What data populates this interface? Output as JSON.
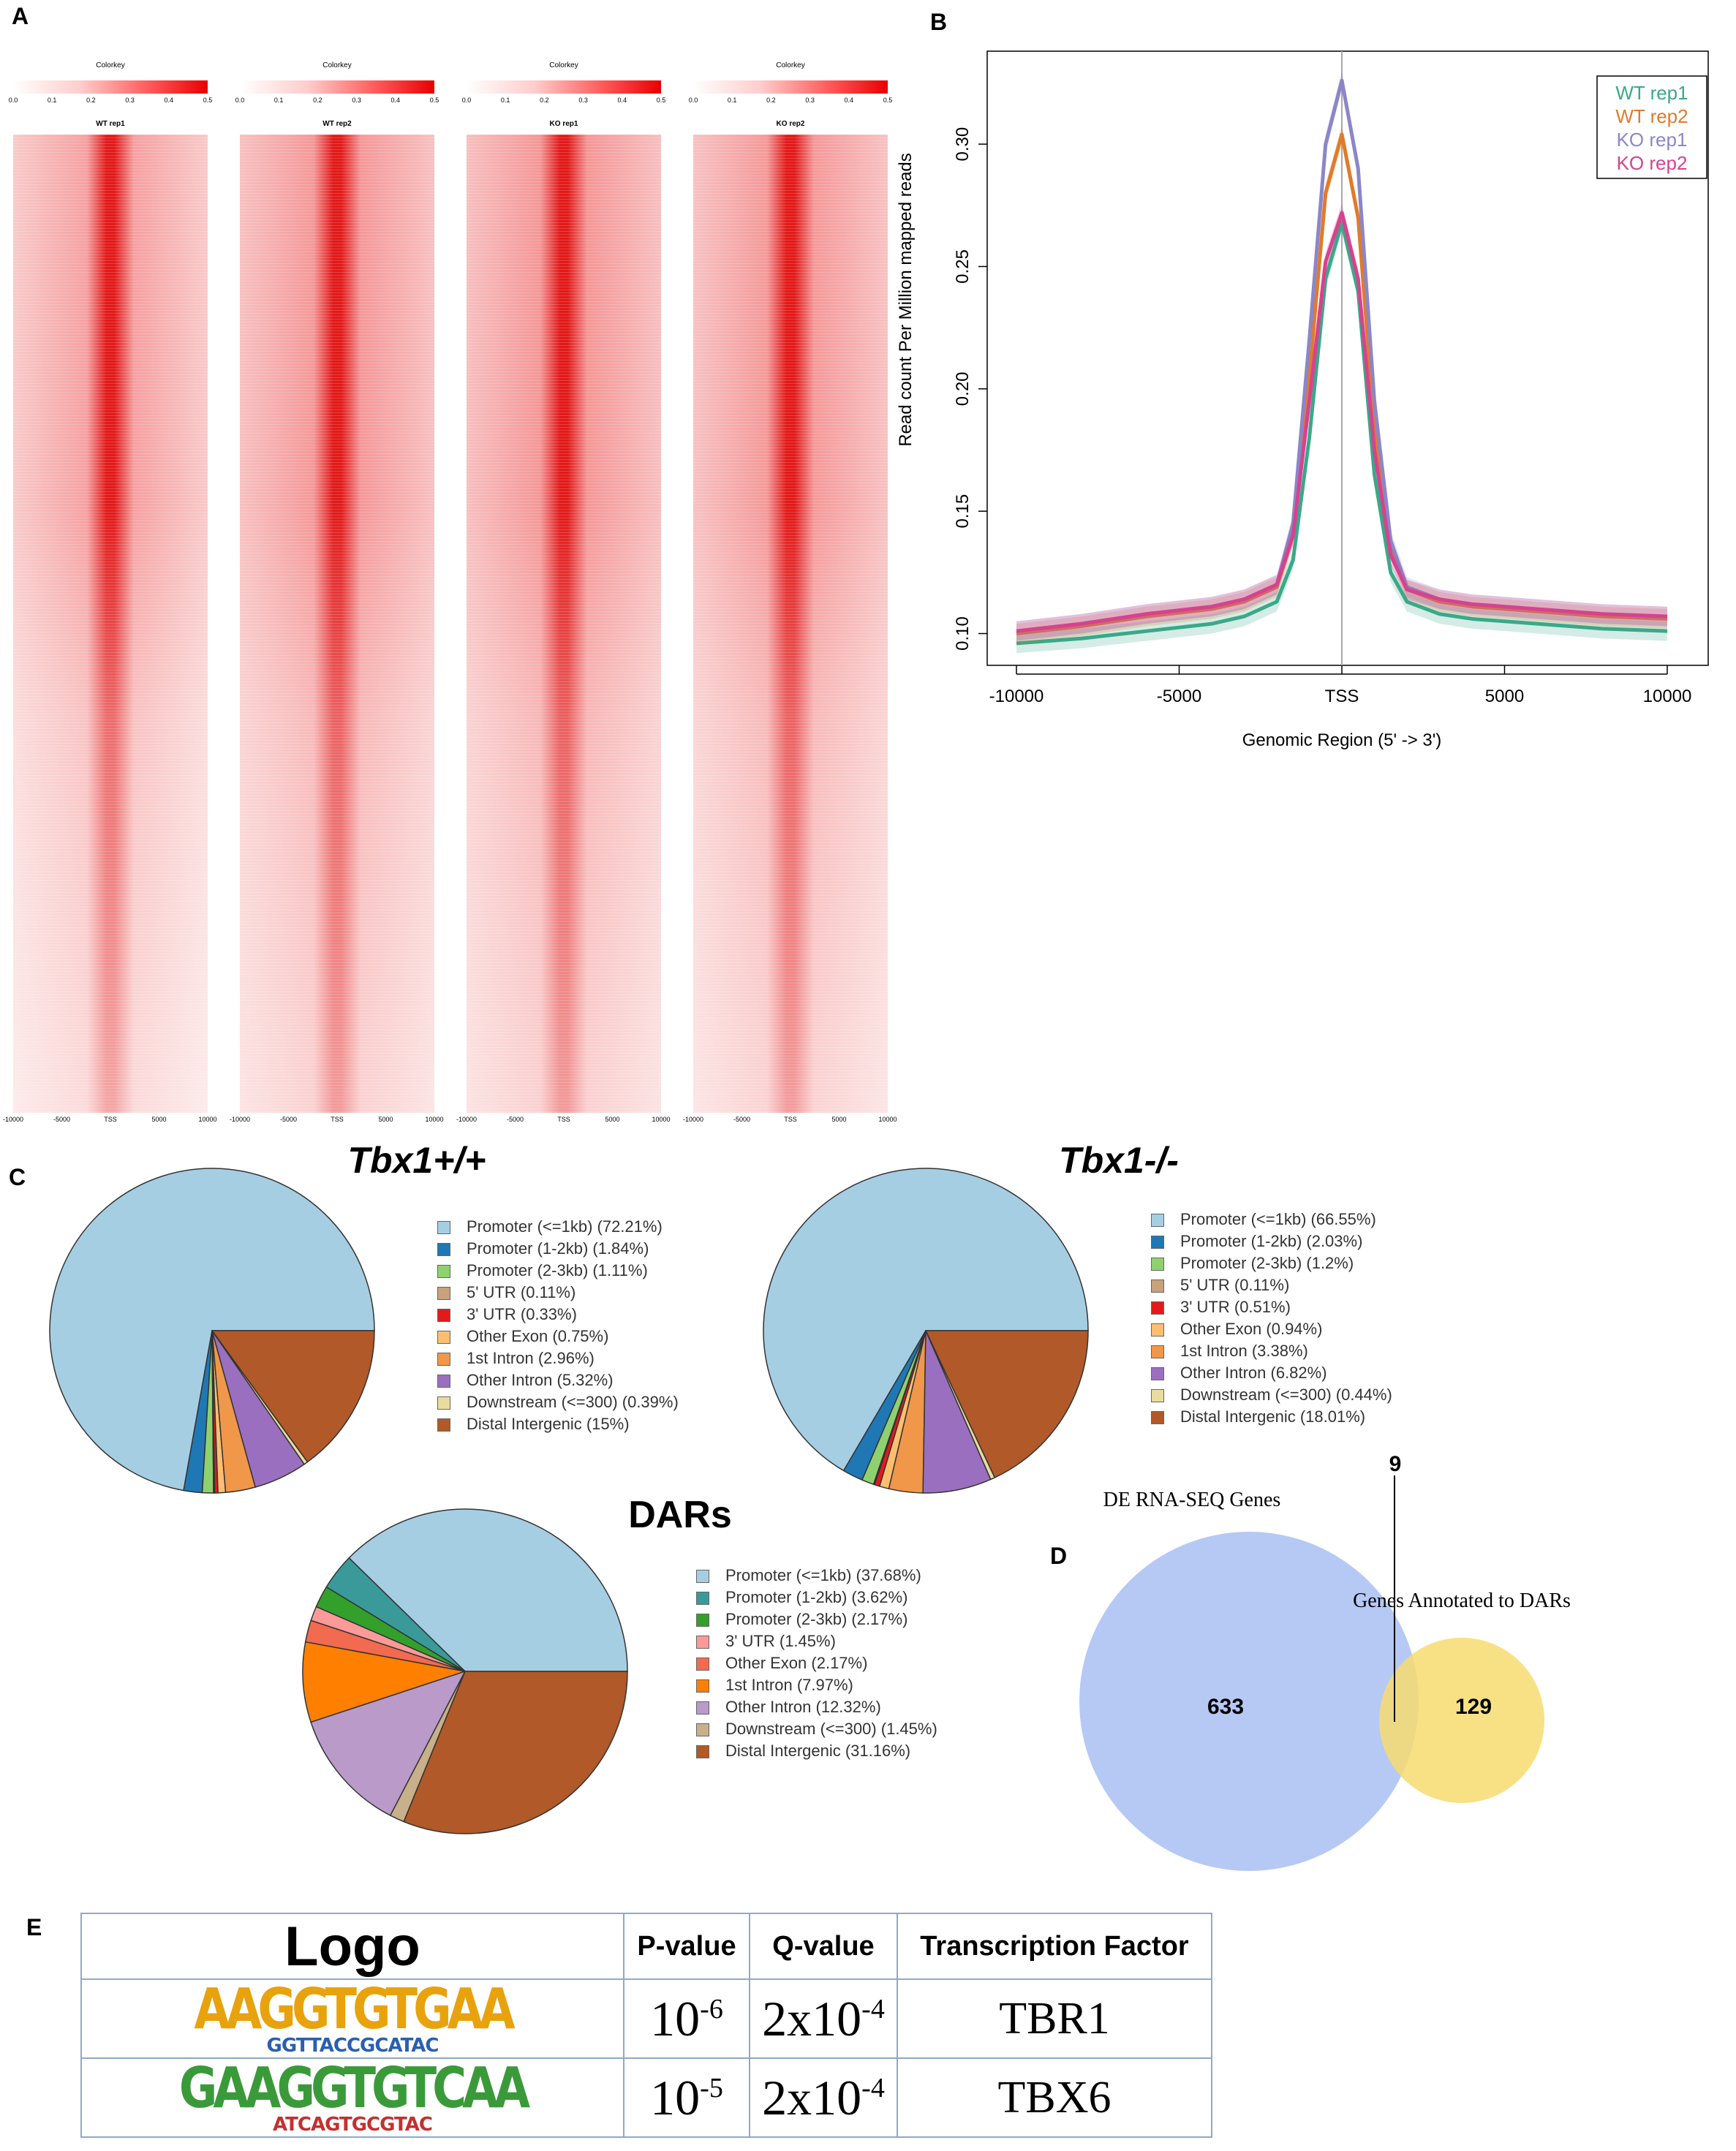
{
  "panels": {
    "a": "A",
    "b": "B",
    "c": "C",
    "d": "D",
    "e": "E"
  },
  "heatmaps": {
    "colorkey_title": "Colorkey",
    "x_ticks": [
      "-10000",
      "-5000",
      "TSS",
      "5000",
      "10000"
    ],
    "samples": [
      {
        "name": "WT rep1",
        "colorkey_ticks": [
          "0.0",
          "0.1",
          "0.2",
          "0.3",
          "0.4",
          "0.5"
        ],
        "intensity": 0.45
      },
      {
        "name": "WT rep2",
        "colorkey_ticks": [
          "0.0",
          "0.1",
          "0.2",
          "0.3",
          "0.4",
          "0.5"
        ],
        "intensity": 0.6
      },
      {
        "name": "KO rep1",
        "colorkey_ticks": [
          "0.0",
          "0.1",
          "0.2",
          "0.3",
          "0.4",
          "0.5"
        ],
        "intensity": 0.62
      },
      {
        "name": "KO rep2",
        "colorkey_ticks": [
          "0.0",
          "0.1",
          "0.2",
          "0.3",
          "0.4",
          "0.5"
        ],
        "intensity": 0.58
      }
    ]
  },
  "chart_data": [
    {
      "type": "line",
      "id": "profile",
      "title": "",
      "xlabel": "Genomic Region (5' -> 3')",
      "ylabel": "Read count Per Million mapped reads",
      "xlim": [
        -10000,
        10000
      ],
      "ylim": [
        0.09,
        0.335
      ],
      "x_ticks": [
        -10000,
        -5000,
        0,
        5000,
        10000
      ],
      "x_tick_labels": [
        "-10000",
        "-5000",
        "TSS",
        "5000",
        "10000"
      ],
      "y_ticks": [
        0.1,
        0.15,
        0.2,
        0.25,
        0.3
      ],
      "y_tick_labels": [
        "0.10",
        "0.15",
        "0.20",
        "0.25",
        "0.30"
      ],
      "legend_position": "top-right",
      "x": [
        -10000,
        -8000,
        -6000,
        -4000,
        -3000,
        -2000,
        -1500,
        -1000,
        -500,
        0,
        500,
        1000,
        1500,
        2000,
        3000,
        4000,
        6000,
        8000,
        10000
      ],
      "series": [
        {
          "name": "WT rep1",
          "color": "#3aa889",
          "values": [
            0.096,
            0.098,
            0.101,
            0.104,
            0.107,
            0.113,
            0.13,
            0.18,
            0.245,
            0.268,
            0.24,
            0.165,
            0.125,
            0.113,
            0.108,
            0.106,
            0.104,
            0.102,
            0.101
          ]
        },
        {
          "name": "WT rep2",
          "color": "#e07b2a",
          "values": [
            0.1,
            0.103,
            0.107,
            0.11,
            0.113,
            0.119,
            0.14,
            0.205,
            0.28,
            0.304,
            0.27,
            0.185,
            0.135,
            0.118,
            0.113,
            0.111,
            0.109,
            0.107,
            0.106
          ]
        },
        {
          "name": "KO rep1",
          "color": "#8b86c8",
          "values": [
            0.101,
            0.104,
            0.108,
            0.111,
            0.114,
            0.12,
            0.145,
            0.22,
            0.3,
            0.326,
            0.29,
            0.195,
            0.138,
            0.119,
            0.114,
            0.112,
            0.11,
            0.108,
            0.107
          ]
        },
        {
          "name": "KO rep2",
          "color": "#d6428f",
          "values": [
            0.101,
            0.104,
            0.108,
            0.111,
            0.114,
            0.12,
            0.14,
            0.195,
            0.252,
            0.272,
            0.245,
            0.175,
            0.132,
            0.118,
            0.114,
            0.112,
            0.11,
            0.108,
            0.107
          ]
        }
      ]
    },
    {
      "type": "pie",
      "id": "wt",
      "title": "Tbx1+/+",
      "slices": [
        {
          "label": "Promoter (<=1kb) (72.21%)",
          "value": 72.21,
          "color": "#a6cee3"
        },
        {
          "label": "Promoter (1-2kb) (1.84%)",
          "value": 1.84,
          "color": "#1f78b4"
        },
        {
          "label": "Promoter (2-3kb) (1.11%)",
          "value": 1.11,
          "color": "#8fd16f"
        },
        {
          "label": "5' UTR (0.11%)",
          "value": 0.11,
          "color": "#c7a27c"
        },
        {
          "label": "3' UTR (0.33%)",
          "value": 0.33,
          "color": "#e31a1c"
        },
        {
          "label": "Other Exon (0.75%)",
          "value": 0.75,
          "color": "#fdbf6f"
        },
        {
          "label": "1st Intron (2.96%)",
          "value": 2.96,
          "color": "#f0974a"
        },
        {
          "label": "Other Intron (5.32%)",
          "value": 5.32,
          "color": "#9b6fc0"
        },
        {
          "label": "Downstream (<=300) (0.39%)",
          "value": 0.39,
          "color": "#e8dca0"
        },
        {
          "label": "Distal Intergenic (15%)",
          "value": 15,
          "color": "#b15928"
        }
      ]
    },
    {
      "type": "pie",
      "id": "ko",
      "title": "Tbx1-/-",
      "slices": [
        {
          "label": "Promoter (<=1kb) (66.55%)",
          "value": 66.55,
          "color": "#a6cee3"
        },
        {
          "label": "Promoter (1-2kb) (2.03%)",
          "value": 2.03,
          "color": "#1f78b4"
        },
        {
          "label": "Promoter (2-3kb) (1.2%)",
          "value": 1.2,
          "color": "#8fd16f"
        },
        {
          "label": "5' UTR (0.11%)",
          "value": 0.11,
          "color": "#c7a27c"
        },
        {
          "label": "3' UTR (0.51%)",
          "value": 0.51,
          "color": "#e31a1c"
        },
        {
          "label": "Other Exon (0.94%)",
          "value": 0.94,
          "color": "#fdbf6f"
        },
        {
          "label": "1st Intron (3.38%)",
          "value": 3.38,
          "color": "#f0974a"
        },
        {
          "label": "Other Intron (6.82%)",
          "value": 6.82,
          "color": "#9b6fc0"
        },
        {
          "label": "Downstream (<=300) (0.44%)",
          "value": 0.44,
          "color": "#e8dca0"
        },
        {
          "label": "Distal Intergenic (18.01%)",
          "value": 18.01,
          "color": "#b15928"
        }
      ]
    },
    {
      "type": "pie",
      "id": "dars",
      "title": "DARs",
      "slices": [
        {
          "label": "Promoter (<=1kb) (37.68%)",
          "value": 37.68,
          "color": "#a6cee3"
        },
        {
          "label": "Promoter (1-2kb) (3.62%)",
          "value": 3.62,
          "color": "#3a9a9a"
        },
        {
          "label": "Promoter (2-3kb) (2.17%)",
          "value": 2.17,
          "color": "#33a02c"
        },
        {
          "label": "3' UTR (1.45%)",
          "value": 1.45,
          "color": "#fb9a99"
        },
        {
          "label": "Other Exon (2.17%)",
          "value": 2.17,
          "color": "#f26a4f"
        },
        {
          "label": "1st Intron (7.97%)",
          "value": 7.97,
          "color": "#ff7f00"
        },
        {
          "label": "Other Intron (12.32%)",
          "value": 12.32,
          "color": "#b99ac9"
        },
        {
          "label": "Downstream (<=300) (1.45%)",
          "value": 1.45,
          "color": "#c7b08a"
        },
        {
          "label": "Distal Intergenic (31.16%)",
          "value": 31.16,
          "color": "#b15928"
        }
      ]
    }
  ],
  "venn": {
    "set_a_label": "DE RNA-SEQ Genes",
    "set_b_label": "Genes Annotated to DARs",
    "only_a": "633",
    "only_b": "129",
    "overlap": "9",
    "color_a": "#a9bff2",
    "color_b": "#f7dc6f"
  },
  "motif_table": {
    "headers": {
      "logo": "Logo",
      "pvalue": "P-value",
      "qvalue": "Q-value",
      "tf": "Transcription Factor"
    },
    "rows": [
      {
        "logo_main": "AAGGTGTGAA",
        "logo_sub": "GGTTACCGCATAC",
        "p_base": "10",
        "p_exp": "-6",
        "q_base": "2x10",
        "q_exp": "-4",
        "tf": "TBR1"
      },
      {
        "logo_main": "GAAGGTGTCAA",
        "logo_sub": "ATCAGTGCGTAC",
        "p_base": "10",
        "p_exp": "-5",
        "q_base": "2x10",
        "q_exp": "-4",
        "tf": "TBX6"
      }
    ]
  }
}
